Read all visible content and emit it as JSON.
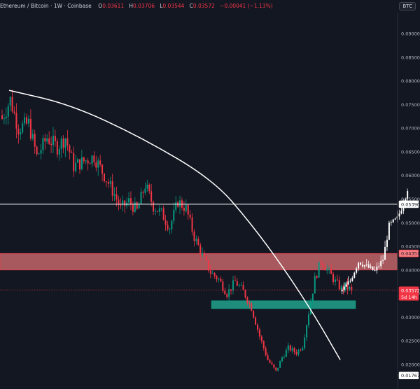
{
  "header": {
    "pair": "Ethereum / Bitcoin",
    "interval": "1W",
    "exchange": "Coinbase",
    "o_label": "O",
    "o_value": "0.03611",
    "h_label": "H",
    "h_value": "0.03706",
    "l_label": "L",
    "l_value": "0.03544",
    "c_label": "C",
    "c_value": "0.03572",
    "change": "−0.00041 (−1.13%)"
  },
  "currency_button": "BTC",
  "chart_data": {
    "type": "candlestick",
    "ylim": [
      0.01767,
      0.095
    ],
    "y_ticks": [
      "0.09000",
      "0.08500",
      "0.08000",
      "0.07500",
      "0.07000",
      "0.06500",
      "0.06000",
      "0.05500",
      "0.05000",
      "0.04500",
      "0.04000",
      "0.03500",
      "0.03000",
      "0.02500",
      "0.02000"
    ],
    "y_tick_values": [
      0.09,
      0.085,
      0.08,
      0.075,
      0.07,
      0.065,
      0.06,
      0.055,
      0.05,
      0.045,
      0.04,
      0.035,
      0.03,
      0.025,
      0.02
    ],
    "price_labels": [
      {
        "text": "0.05390",
        "value": 0.0539,
        "style": "line"
      },
      {
        "text": "0.04351",
        "value": 0.04351,
        "style": "zone"
      },
      {
        "text": "0.03572",
        "value": 0.03572,
        "style": "last"
      },
      {
        "text": "5d 14h",
        "value": 0.0343,
        "style": "countdown"
      },
      {
        "text": "0.01767",
        "value": 0.01767,
        "style": "low"
      }
    ],
    "horizontal_line": 0.0539,
    "resistance_zone": [
      0.04,
      0.0435
    ],
    "support_zone": [
      0.0318,
      0.0335
    ],
    "last_price": 0.03572,
    "curve": [
      [
        0.078,
        0
      ],
      [
        0.075,
        30
      ],
      [
        0.068,
        65
      ],
      [
        0.059,
        100
      ],
      [
        0.05,
        118
      ],
      [
        0.04,
        135
      ],
      [
        0.03,
        150
      ],
      [
        0.021,
        162
      ]
    ],
    "up_color": "#089981",
    "down_color": "#f23645",
    "projection_color": "#ffffff",
    "anchors": [
      [
        0,
        0.072
      ],
      [
        4,
        0.076
      ],
      [
        8,
        0.07
      ],
      [
        13,
        0.071
      ],
      [
        17,
        0.064
      ],
      [
        22,
        0.068
      ],
      [
        27,
        0.066
      ],
      [
        31,
        0.068
      ],
      [
        35,
        0.062
      ],
      [
        40,
        0.063
      ],
      [
        45,
        0.064
      ],
      [
        50,
        0.06
      ],
      [
        55,
        0.056
      ],
      [
        58,
        0.053
      ],
      [
        62,
        0.0545
      ],
      [
        66,
        0.0525
      ],
      [
        70,
        0.058
      ],
      [
        74,
        0.0535
      ],
      [
        78,
        0.052
      ],
      [
        82,
        0.049
      ],
      [
        86,
        0.0545
      ],
      [
        90,
        0.053
      ],
      [
        94,
        0.047
      ],
      [
        98,
        0.043
      ],
      [
        102,
        0.0395
      ],
      [
        106,
        0.038
      ],
      [
        110,
        0.035
      ],
      [
        114,
        0.0375
      ],
      [
        118,
        0.0355
      ],
      [
        122,
        0.032
      ],
      [
        126,
        0.026
      ],
      [
        130,
        0.021
      ],
      [
        134,
        0.0185
      ],
      [
        137,
        0.0215
      ],
      [
        140,
        0.0235
      ],
      [
        144,
        0.0225
      ],
      [
        147,
        0.024
      ],
      [
        150,
        0.031
      ],
      [
        153,
        0.038
      ],
      [
        156,
        0.042
      ],
      [
        160,
        0.0395
      ],
      [
        163,
        0.0375
      ],
      [
        166,
        0.036
      ],
      [
        168,
        0.0365
      ],
      [
        171,
        0.03572
      ]
    ],
    "projection_anchors": [
      [
        166,
        0.0355
      ],
      [
        170,
        0.0375
      ],
      [
        174,
        0.0415
      ],
      [
        178,
        0.0405
      ],
      [
        182,
        0.0395
      ],
      [
        186,
        0.042
      ],
      [
        189,
        0.049
      ],
      [
        193,
        0.0505
      ],
      [
        196,
        0.054
      ],
      [
        198,
        0.057
      ]
    ]
  }
}
